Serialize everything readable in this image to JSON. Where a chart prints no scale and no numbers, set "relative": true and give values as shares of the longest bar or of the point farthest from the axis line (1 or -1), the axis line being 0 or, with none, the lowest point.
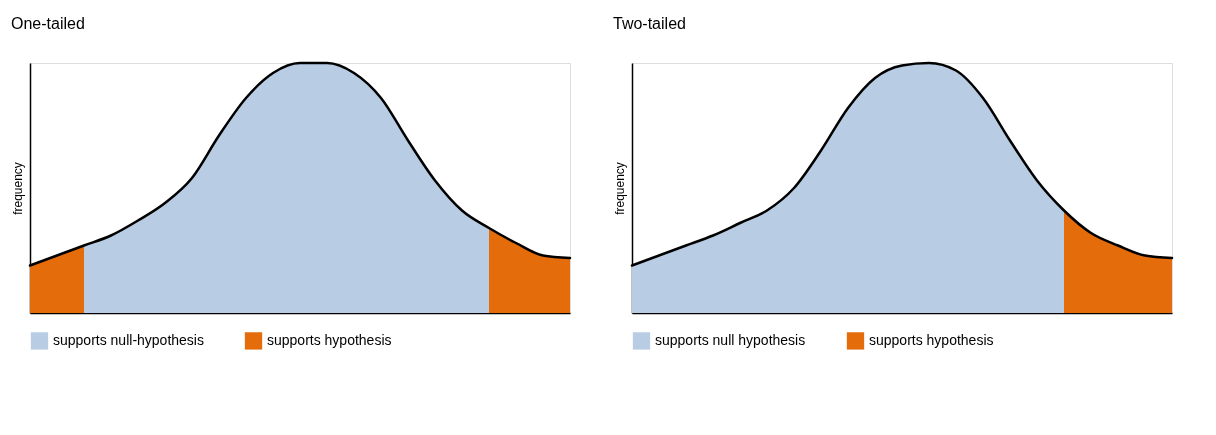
{
  "chart_data": [
    {
      "type": "area",
      "title": "One-tailed",
      "ylabel": "frequency",
      "relative": true,
      "legend": "bottom",
      "tick_labels": false,
      "categories": [
        null,
        null,
        null,
        null,
        null,
        null,
        null,
        null,
        null,
        null,
        null,
        null,
        null,
        null,
        null,
        null,
        null,
        null,
        null,
        null,
        null
      ],
      "series": [
        {
          "name": "supports null-hypothesis",
          "color": "#b8cce4",
          "values": [
            null,
            null,
            0.27,
            0.31,
            0.37,
            0.44,
            0.54,
            0.71,
            0.86,
            0.96,
            1,
            1,
            0.96,
            0.86,
            0.69,
            0.53,
            0.41,
            0.34,
            null,
            null,
            null
          ]
        },
        {
          "name": "supports hypothesis",
          "color": "#e46c0a",
          "values": [
            0.19,
            0.23,
            0.27,
            null,
            null,
            null,
            null,
            null,
            null,
            null,
            null,
            null,
            null,
            null,
            null,
            null,
            null,
            0.34,
            0.28,
            0.23,
            0.22
          ]
        },
        {
          "type": "line",
          "color": "#000000",
          "values": [
            0.19,
            0.23,
            0.27,
            0.31,
            0.37,
            0.44,
            0.54,
            0.71,
            0.86,
            0.96,
            1,
            1,
            0.96,
            0.86,
            0.69,
            0.53,
            0.41,
            0.34,
            0.28,
            0.23,
            0.22
          ]
        }
      ]
    },
    {
      "type": "area",
      "title": "Two-tailed",
      "ylabel": "frequency",
      "relative": true,
      "legend": "bottom",
      "tick_labels": false,
      "categories": [
        null,
        null,
        null,
        null,
        null,
        null,
        null,
        null,
        null,
        null,
        null,
        null,
        null,
        null,
        null,
        null,
        null,
        null,
        null,
        null,
        null
      ],
      "series": [
        {
          "name": "supports null hypothesis",
          "color": "#b8cce4",
          "values": [
            0.19,
            0.23,
            0.27,
            0.31,
            0.36,
            0.41,
            0.5,
            0.65,
            0.82,
            0.94,
            0.99,
            1,
            0.97,
            0.86,
            0.69,
            0.53,
            0.41,
            null,
            null,
            null,
            null
          ]
        },
        {
          "name": "supports hypothesis",
          "color": "#e46c0a",
          "values": [
            null,
            null,
            null,
            null,
            null,
            null,
            null,
            null,
            null,
            null,
            null,
            null,
            null,
            null,
            null,
            null,
            0.41,
            0.32,
            0.27,
            0.23,
            0.22
          ]
        },
        {
          "type": "line",
          "color": "#000000",
          "values": [
            0.19,
            0.23,
            0.27,
            0.31,
            0.36,
            0.41,
            0.5,
            0.65,
            0.82,
            0.94,
            0.99,
            1,
            0.97,
            0.86,
            0.69,
            0.53,
            0.41,
            0.32,
            0.27,
            0.23,
            0.22
          ]
        }
      ]
    }
  ]
}
